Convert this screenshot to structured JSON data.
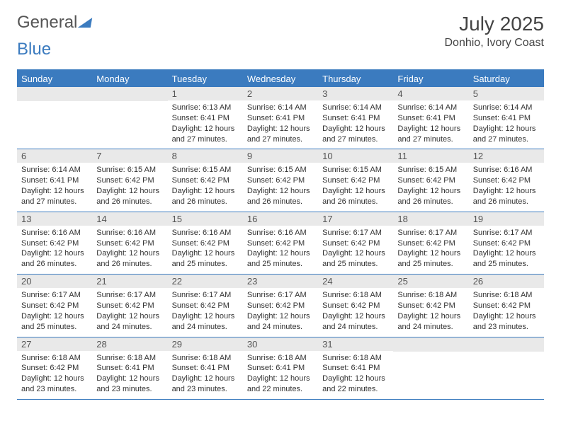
{
  "brand": {
    "part1": "General",
    "part2": "Blue"
  },
  "title": "July 2025",
  "location": "Donhio, Ivory Coast",
  "day_names": [
    "Sunday",
    "Monday",
    "Tuesday",
    "Wednesday",
    "Thursday",
    "Friday",
    "Saturday"
  ],
  "colors": {
    "header_bg": "#3b7bbf",
    "header_text": "#ffffff",
    "daynum_bg": "#e9e9e9",
    "border": "#3b7bbf",
    "text": "#333333",
    "background": "#ffffff"
  },
  "weeks": [
    [
      null,
      null,
      {
        "n": "1",
        "sr": "Sunrise: 6:13 AM",
        "ss": "Sunset: 6:41 PM",
        "dl": "Daylight: 12 hours and 27 minutes."
      },
      {
        "n": "2",
        "sr": "Sunrise: 6:14 AM",
        "ss": "Sunset: 6:41 PM",
        "dl": "Daylight: 12 hours and 27 minutes."
      },
      {
        "n": "3",
        "sr": "Sunrise: 6:14 AM",
        "ss": "Sunset: 6:41 PM",
        "dl": "Daylight: 12 hours and 27 minutes."
      },
      {
        "n": "4",
        "sr": "Sunrise: 6:14 AM",
        "ss": "Sunset: 6:41 PM",
        "dl": "Daylight: 12 hours and 27 minutes."
      },
      {
        "n": "5",
        "sr": "Sunrise: 6:14 AM",
        "ss": "Sunset: 6:41 PM",
        "dl": "Daylight: 12 hours and 27 minutes."
      }
    ],
    [
      {
        "n": "6",
        "sr": "Sunrise: 6:14 AM",
        "ss": "Sunset: 6:41 PM",
        "dl": "Daylight: 12 hours and 27 minutes."
      },
      {
        "n": "7",
        "sr": "Sunrise: 6:15 AM",
        "ss": "Sunset: 6:42 PM",
        "dl": "Daylight: 12 hours and 26 minutes."
      },
      {
        "n": "8",
        "sr": "Sunrise: 6:15 AM",
        "ss": "Sunset: 6:42 PM",
        "dl": "Daylight: 12 hours and 26 minutes."
      },
      {
        "n": "9",
        "sr": "Sunrise: 6:15 AM",
        "ss": "Sunset: 6:42 PM",
        "dl": "Daylight: 12 hours and 26 minutes."
      },
      {
        "n": "10",
        "sr": "Sunrise: 6:15 AM",
        "ss": "Sunset: 6:42 PM",
        "dl": "Daylight: 12 hours and 26 minutes."
      },
      {
        "n": "11",
        "sr": "Sunrise: 6:15 AM",
        "ss": "Sunset: 6:42 PM",
        "dl": "Daylight: 12 hours and 26 minutes."
      },
      {
        "n": "12",
        "sr": "Sunrise: 6:16 AM",
        "ss": "Sunset: 6:42 PM",
        "dl": "Daylight: 12 hours and 26 minutes."
      }
    ],
    [
      {
        "n": "13",
        "sr": "Sunrise: 6:16 AM",
        "ss": "Sunset: 6:42 PM",
        "dl": "Daylight: 12 hours and 26 minutes."
      },
      {
        "n": "14",
        "sr": "Sunrise: 6:16 AM",
        "ss": "Sunset: 6:42 PM",
        "dl": "Daylight: 12 hours and 26 minutes."
      },
      {
        "n": "15",
        "sr": "Sunrise: 6:16 AM",
        "ss": "Sunset: 6:42 PM",
        "dl": "Daylight: 12 hours and 25 minutes."
      },
      {
        "n": "16",
        "sr": "Sunrise: 6:16 AM",
        "ss": "Sunset: 6:42 PM",
        "dl": "Daylight: 12 hours and 25 minutes."
      },
      {
        "n": "17",
        "sr": "Sunrise: 6:17 AM",
        "ss": "Sunset: 6:42 PM",
        "dl": "Daylight: 12 hours and 25 minutes."
      },
      {
        "n": "18",
        "sr": "Sunrise: 6:17 AM",
        "ss": "Sunset: 6:42 PM",
        "dl": "Daylight: 12 hours and 25 minutes."
      },
      {
        "n": "19",
        "sr": "Sunrise: 6:17 AM",
        "ss": "Sunset: 6:42 PM",
        "dl": "Daylight: 12 hours and 25 minutes."
      }
    ],
    [
      {
        "n": "20",
        "sr": "Sunrise: 6:17 AM",
        "ss": "Sunset: 6:42 PM",
        "dl": "Daylight: 12 hours and 25 minutes."
      },
      {
        "n": "21",
        "sr": "Sunrise: 6:17 AM",
        "ss": "Sunset: 6:42 PM",
        "dl": "Daylight: 12 hours and 24 minutes."
      },
      {
        "n": "22",
        "sr": "Sunrise: 6:17 AM",
        "ss": "Sunset: 6:42 PM",
        "dl": "Daylight: 12 hours and 24 minutes."
      },
      {
        "n": "23",
        "sr": "Sunrise: 6:17 AM",
        "ss": "Sunset: 6:42 PM",
        "dl": "Daylight: 12 hours and 24 minutes."
      },
      {
        "n": "24",
        "sr": "Sunrise: 6:18 AM",
        "ss": "Sunset: 6:42 PM",
        "dl": "Daylight: 12 hours and 24 minutes."
      },
      {
        "n": "25",
        "sr": "Sunrise: 6:18 AM",
        "ss": "Sunset: 6:42 PM",
        "dl": "Daylight: 12 hours and 24 minutes."
      },
      {
        "n": "26",
        "sr": "Sunrise: 6:18 AM",
        "ss": "Sunset: 6:42 PM",
        "dl": "Daylight: 12 hours and 23 minutes."
      }
    ],
    [
      {
        "n": "27",
        "sr": "Sunrise: 6:18 AM",
        "ss": "Sunset: 6:42 PM",
        "dl": "Daylight: 12 hours and 23 minutes."
      },
      {
        "n": "28",
        "sr": "Sunrise: 6:18 AM",
        "ss": "Sunset: 6:41 PM",
        "dl": "Daylight: 12 hours and 23 minutes."
      },
      {
        "n": "29",
        "sr": "Sunrise: 6:18 AM",
        "ss": "Sunset: 6:41 PM",
        "dl": "Daylight: 12 hours and 23 minutes."
      },
      {
        "n": "30",
        "sr": "Sunrise: 6:18 AM",
        "ss": "Sunset: 6:41 PM",
        "dl": "Daylight: 12 hours and 22 minutes."
      },
      {
        "n": "31",
        "sr": "Sunrise: 6:18 AM",
        "ss": "Sunset: 6:41 PM",
        "dl": "Daylight: 12 hours and 22 minutes."
      },
      null,
      null
    ]
  ]
}
